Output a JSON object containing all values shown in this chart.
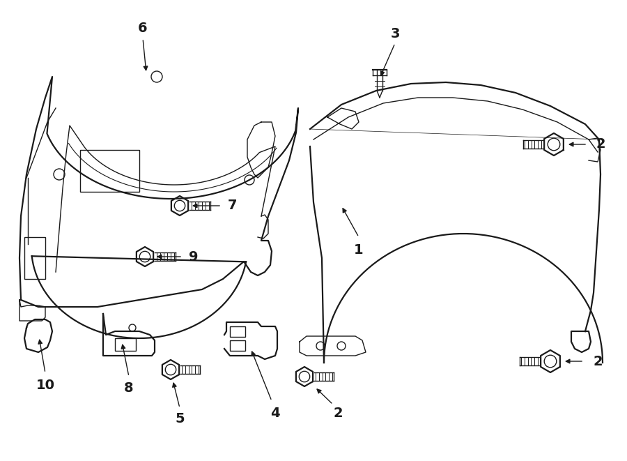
{
  "bg_color": "#ffffff",
  "line_color": "#1a1a1a",
  "lw_main": 1.6,
  "lw_thin": 1.0,
  "font_size": 14
}
